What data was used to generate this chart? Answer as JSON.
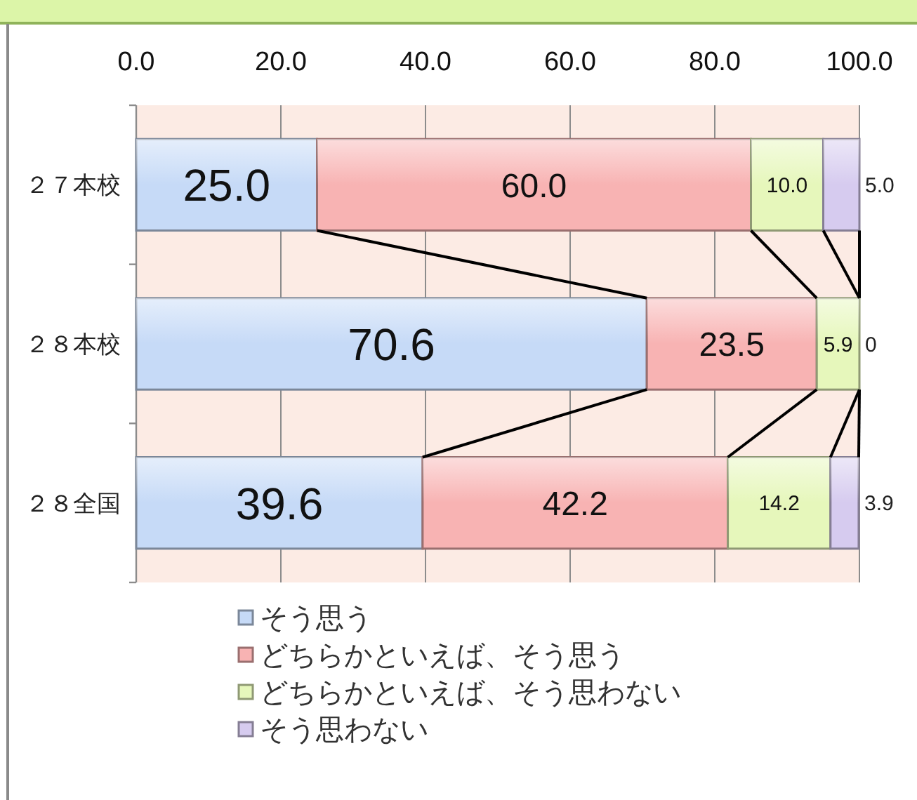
{
  "chart_data": {
    "type": "bar",
    "orientation": "horizontal",
    "stacked": true,
    "categories": [
      "２７本校",
      "２８本校",
      "２８全国"
    ],
    "series": [
      {
        "name": "そう思う",
        "color": "#c6daf7",
        "values": [
          25.0,
          70.6,
          39.6
        ],
        "value_labels": [
          "25.0",
          "70.6",
          "39.6"
        ]
      },
      {
        "name": "どちらかといえば、そう思う",
        "color": "#f8b3b3",
        "values": [
          60.0,
          23.5,
          42.2
        ],
        "value_labels": [
          "60.0",
          "23.5",
          "42.2"
        ]
      },
      {
        "name": "どちらかといえば、そう思わない",
        "color": "#e6f7bb",
        "values": [
          10.0,
          5.9,
          14.2
        ],
        "value_labels": [
          "10.0",
          "5.9",
          "14.2"
        ]
      },
      {
        "name": "そう思わない",
        "color": "#d6cbef",
        "values": [
          5.0,
          0,
          3.9
        ],
        "value_labels": [
          "5.0",
          "0",
          "3.9"
        ]
      }
    ],
    "xlim": [
      0,
      100
    ],
    "xticks": [
      {
        "value": 0,
        "label": "0.0"
      },
      {
        "value": 20,
        "label": "20.0"
      },
      {
        "value": 40,
        "label": "40.0"
      },
      {
        "value": 60,
        "label": "60.0"
      },
      {
        "value": 80,
        "label": "80.0"
      },
      {
        "value": 100,
        "label": "100.0"
      }
    ],
    "grid": "x",
    "legend": "bottom"
  }
}
